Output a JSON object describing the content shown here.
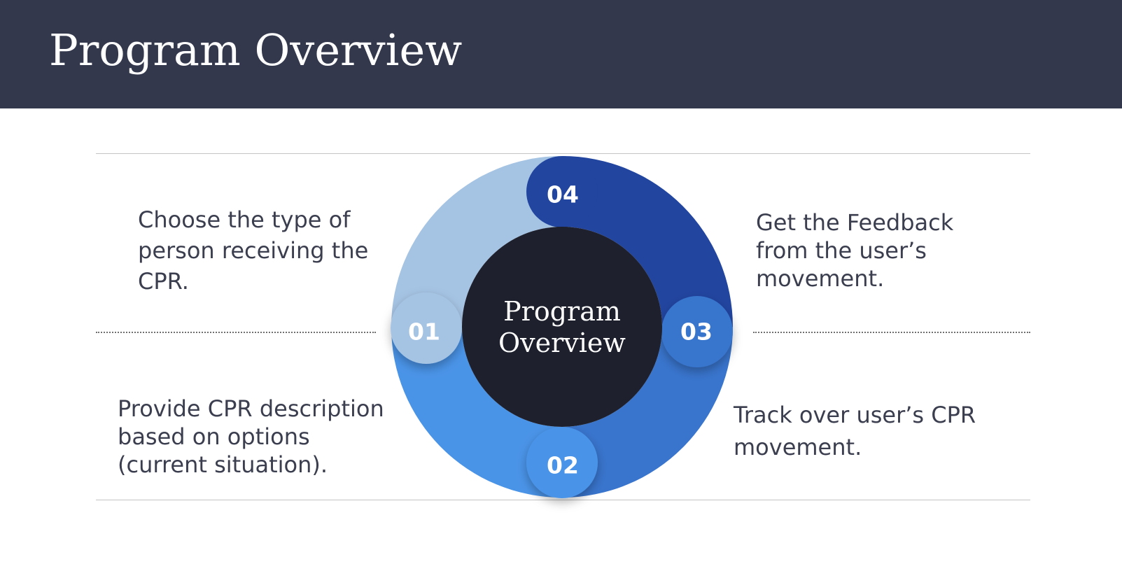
{
  "header": {
    "title": "Program Overview"
  },
  "cycle": {
    "center_line1": "Program",
    "center_line2": "Overview",
    "steps": [
      {
        "number": "01",
        "color": "#a5c3e3",
        "lines": [
          "Choose the type of",
          "person receiving the",
          "CPR."
        ]
      },
      {
        "number": "02",
        "color": "#4a94e8",
        "lines": [
          "Provide CPR description",
          "based on options",
          "(current situation)."
        ]
      },
      {
        "number": "03",
        "color": "#3975cd",
        "lines": [
          "Track over user’s CPR",
          "movement."
        ]
      },
      {
        "number": "04",
        "color": "#2245a0",
        "lines": [
          "Get the Feedback",
          "from the user’s",
          "movement."
        ]
      }
    ]
  },
  "colors": {
    "header_bg": "#33384c",
    "center_circle": "#1e212d",
    "text": "#3b3e4e"
  }
}
